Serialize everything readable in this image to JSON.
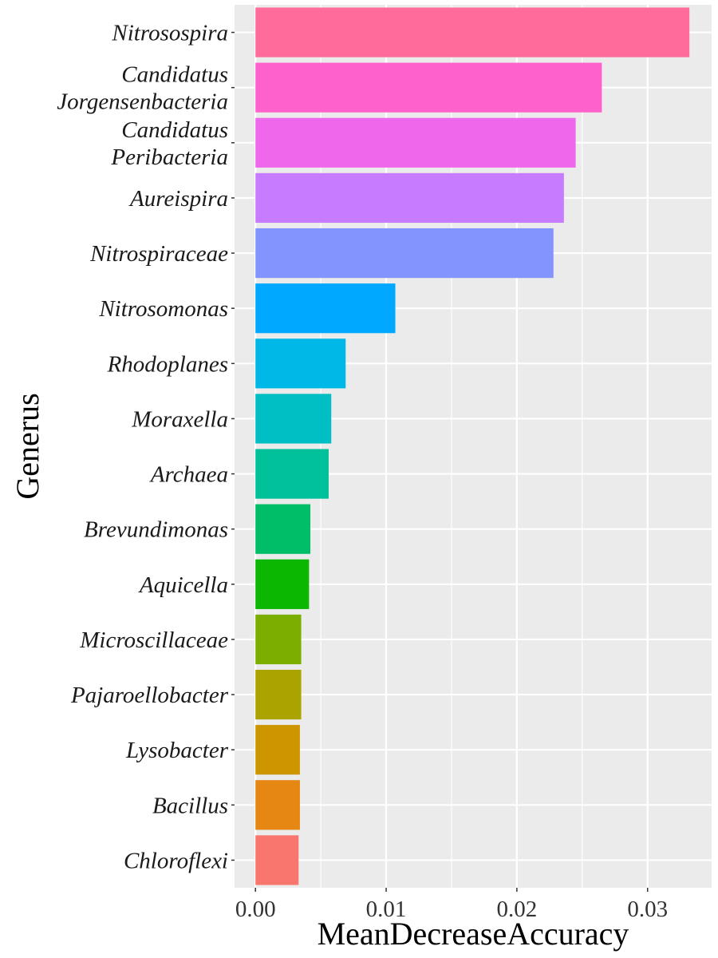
{
  "chart_data": {
    "type": "bar",
    "orientation": "horizontal",
    "xlabel": "MeanDecreaseAccuracy",
    "ylabel": "Generus",
    "xlim": [
      -0.0016,
      0.0349
    ],
    "x_ticks": [
      "0.00",
      "0.01",
      "0.02",
      "0.03"
    ],
    "x_tick_values": [
      0,
      0.01,
      0.02,
      0.03
    ],
    "grid": true,
    "legend": "none",
    "panel_background": "#EBEBEB",
    "grid_color": "#FFFFFF",
    "categories": [
      {
        "label": [
          "Nitrosospira"
        ],
        "value": 0.0332,
        "color": "#FF6C9C"
      },
      {
        "label": [
          "Candidatus",
          "Jorgensenbacteria"
        ],
        "value": 0.0265,
        "color": "#FF61CC"
      },
      {
        "label": [
          "Candidatus",
          "Peribacteria"
        ],
        "value": 0.0245,
        "color": "#EF67EB"
      },
      {
        "label": [
          "Aureispira"
        ],
        "value": 0.0236,
        "color": "#C77CFF"
      },
      {
        "label": [
          "Nitrospiraceae"
        ],
        "value": 0.0228,
        "color": "#8494FF"
      },
      {
        "label": [
          "Nitrosomonas"
        ],
        "value": 0.0107,
        "color": "#00A9FF"
      },
      {
        "label": [
          "Rhodoplanes"
        ],
        "value": 0.0069,
        "color": "#00B8E7"
      },
      {
        "label": [
          "Moraxella"
        ],
        "value": 0.0058,
        "color": "#00BFC4"
      },
      {
        "label": [
          "Archaea"
        ],
        "value": 0.0056,
        "color": "#00C19A"
      },
      {
        "label": [
          "Brevundimonas"
        ],
        "value": 0.0042,
        "color": "#00BE67"
      },
      {
        "label": [
          "Aquicella"
        ],
        "value": 0.0041,
        "color": "#0CB702"
      },
      {
        "label": [
          "Microscillaceae"
        ],
        "value": 0.0035,
        "color": "#7CAE00"
      },
      {
        "label": [
          "Pajaroellobacter"
        ],
        "value": 0.0035,
        "color": "#ABA300"
      },
      {
        "label": [
          "Lysobacter"
        ],
        "value": 0.0034,
        "color": "#CD9600"
      },
      {
        "label": [
          "Bacillus"
        ],
        "value": 0.0034,
        "color": "#E68613"
      },
      {
        "label": [
          "Chloroflexi"
        ],
        "value": 0.0033,
        "color": "#F8766D"
      }
    ]
  }
}
